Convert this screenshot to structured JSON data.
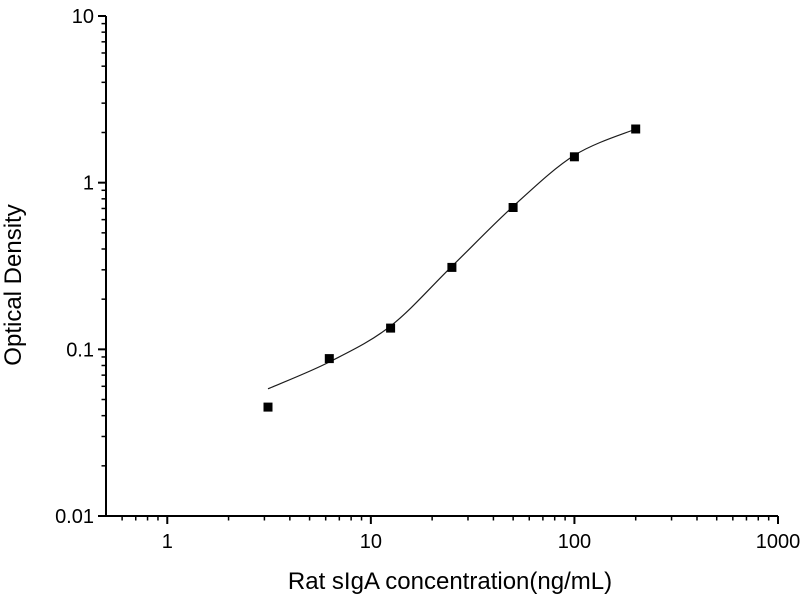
{
  "figure": {
    "background": "#ffffff",
    "axis_color": "#000000",
    "text_color": "#000000"
  },
  "chart_data": {
    "type": "scatter",
    "title": "",
    "xlabel": "Rat sIgA concentration(ng/mL)",
    "ylabel": "Optical Density",
    "x_scale": "log",
    "y_scale": "log",
    "xlim": [
      0.5,
      1000
    ],
    "ylim": [
      0.01,
      10
    ],
    "x_major_ticks": [
      1,
      10,
      100,
      1000
    ],
    "x_tick_labels": [
      "1",
      "10",
      "100",
      "1000"
    ],
    "y_major_ticks": [
      0.01,
      0.1,
      1,
      10
    ],
    "y_tick_labels": [
      "0.01",
      "0.1",
      "1",
      "10"
    ],
    "grid": false,
    "legend": "none",
    "marker": {
      "shape": "square",
      "size": 9,
      "color": "#000000"
    },
    "curve_color": "#1c1c1c",
    "series": [
      {
        "name": "Rat sIgA standard points",
        "x": [
          3.125,
          6.25,
          12.5,
          25,
          50,
          100,
          200
        ],
        "y": [
          0.045,
          0.088,
          0.134,
          0.31,
          0.71,
          1.43,
          2.1
        ]
      }
    ],
    "fit_curve": {
      "name": "4PL fit curve",
      "x": [
        3.125,
        6.25,
        12.5,
        25,
        50,
        100,
        200
      ],
      "y": [
        0.058,
        0.084,
        0.138,
        0.315,
        0.72,
        1.46,
        2.1
      ]
    }
  }
}
